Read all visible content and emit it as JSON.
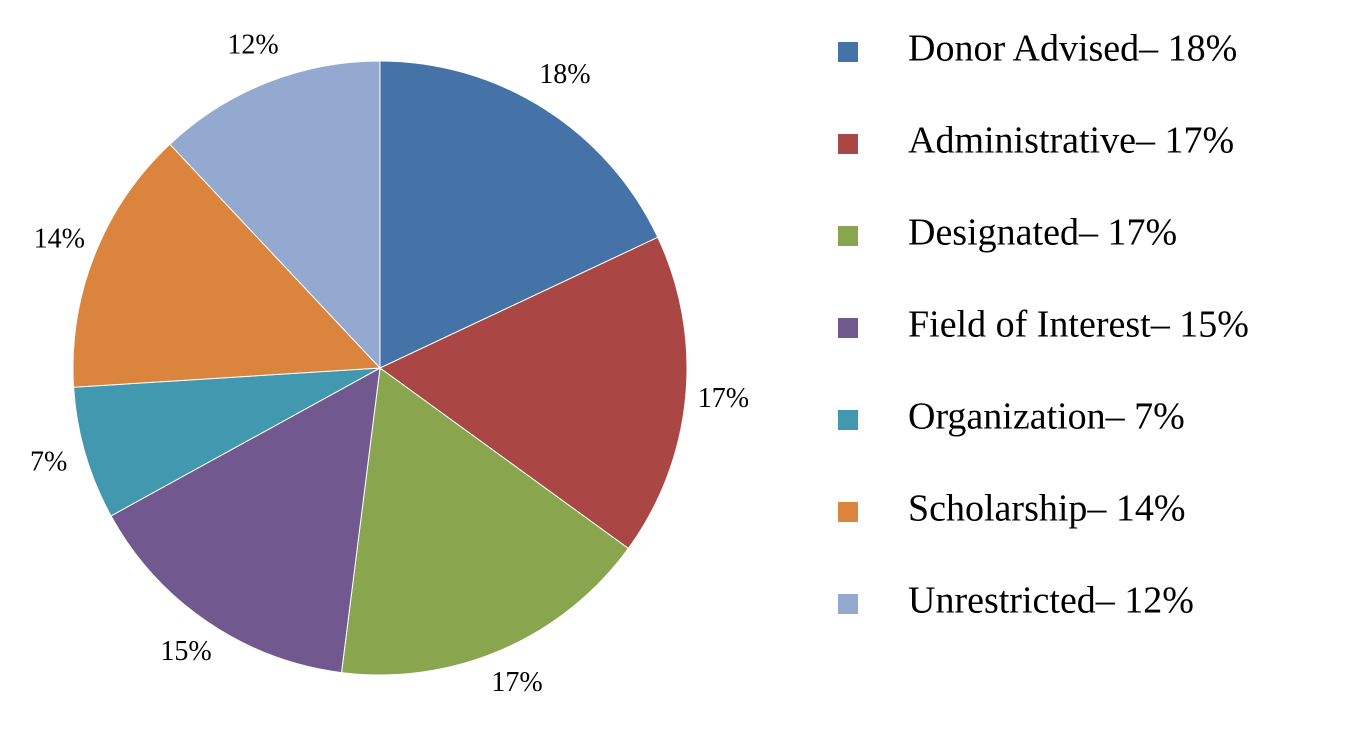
{
  "chart_data": {
    "type": "pie",
    "categories": [
      "Donor Advised– 18%",
      "Administrative– 17%",
      "Designated– 17%",
      "Field of Interest– 15%",
      "Organization– 7%",
      "Scholarship– 14%",
      "Unrestricted– 12%"
    ],
    "values": [
      18,
      17,
      17,
      15,
      7,
      14,
      12
    ],
    "value_labels": [
      "18%",
      "17%",
      "17%",
      "15%",
      "7%",
      "14%",
      "12%"
    ],
    "colors": [
      "#4572a7",
      "#aa4643",
      "#89a54e",
      "#71588f",
      "#4198af",
      "#db843d",
      "#93a9cf"
    ],
    "legend": "right"
  }
}
